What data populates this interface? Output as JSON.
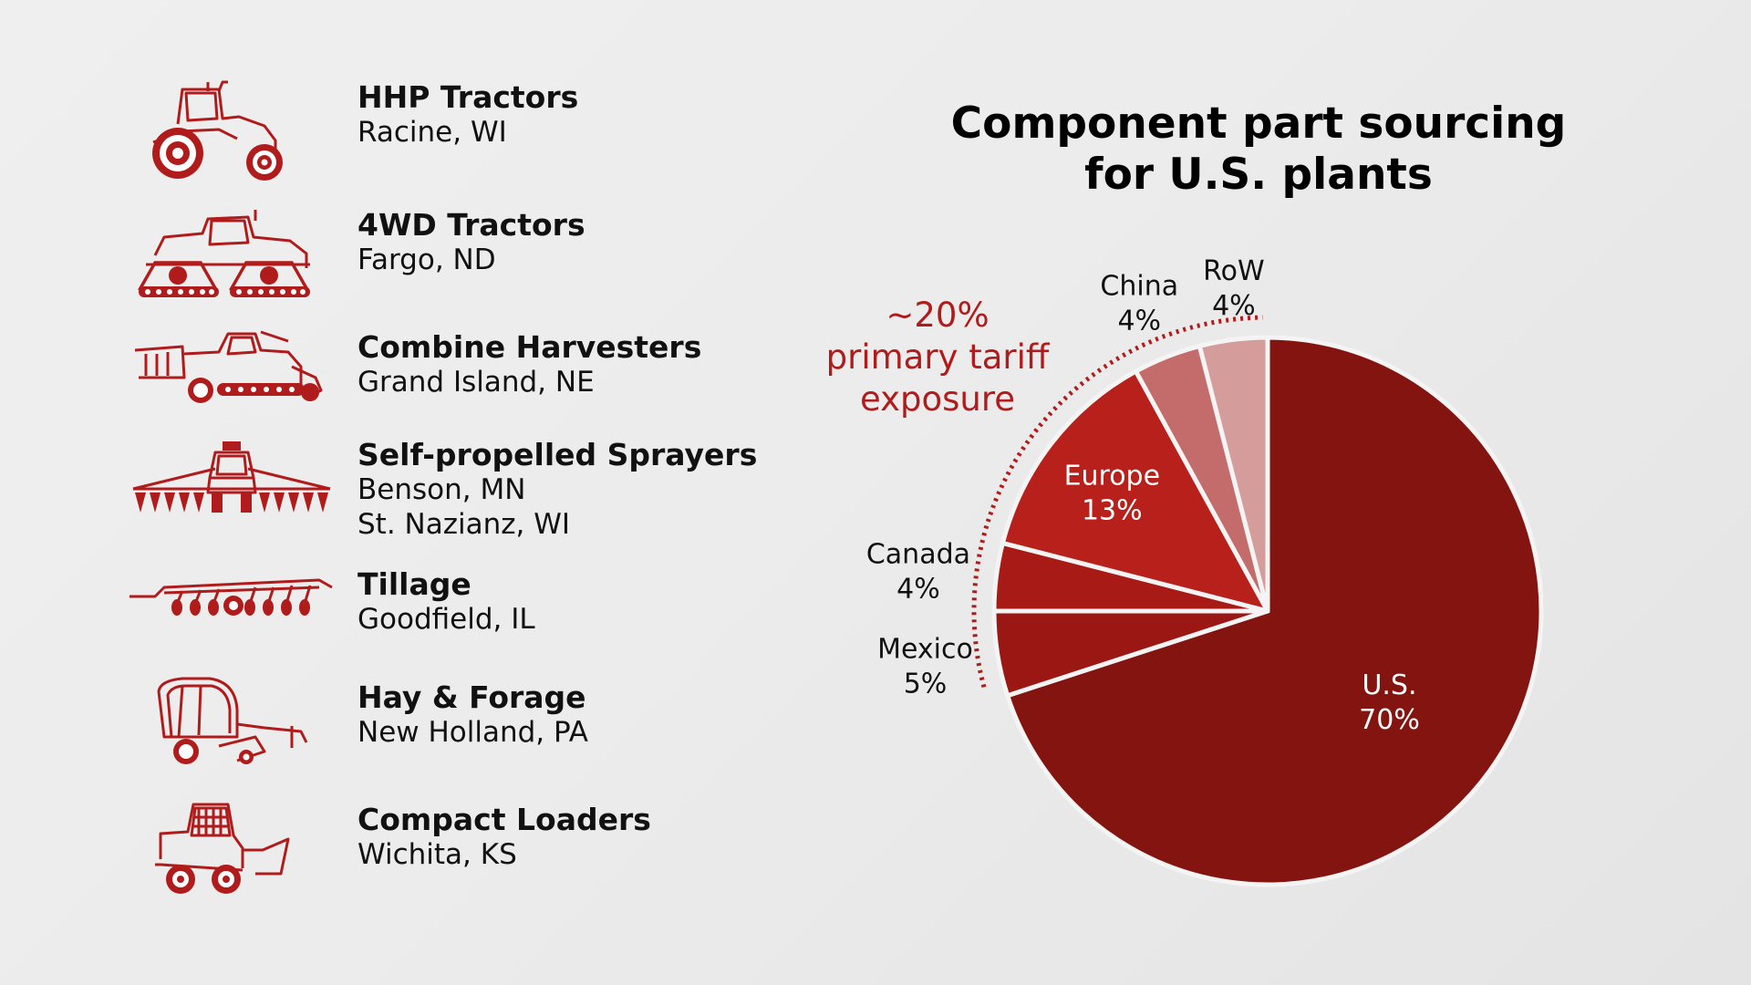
{
  "colors": {
    "accent": "#b01c1c",
    "us": "#831410",
    "mexico": "#9a1714",
    "canada": "#a81a16",
    "europe": "#b8201c",
    "china": "#c46b6b",
    "row": "#d59c9c",
    "tariff_text": "#b01c1c"
  },
  "products": [
    {
      "name": "HHP Tractors",
      "locations": [
        "Racine, WI"
      ],
      "icon": "tractor-icon"
    },
    {
      "name": "4WD Tractors",
      "locations": [
        "Fargo, ND"
      ],
      "icon": "4wd-tractor-icon"
    },
    {
      "name": "Combine Harvesters",
      "locations": [
        "Grand Island, NE"
      ],
      "icon": "combine-harvester-icon"
    },
    {
      "name": "Self-propelled Sprayers",
      "locations": [
        "Benson, MN",
        "St. Nazianz, WI"
      ],
      "icon": "sprayer-icon"
    },
    {
      "name": "Tillage",
      "locations": [
        "Goodfield, IL"
      ],
      "icon": "tillage-icon"
    },
    {
      "name": "Hay & Forage",
      "locations": [
        "New Holland, PA"
      ],
      "icon": "baler-icon"
    },
    {
      "name": "Compact Loaders",
      "locations": [
        "Wichita, KS"
      ],
      "icon": "skid-steer-icon"
    }
  ],
  "chart_data": {
    "type": "pie",
    "title": "Component part sourcing for U.S. plants",
    "title_lines": [
      "Component part sourcing",
      "for U.S. plants"
    ],
    "slices": [
      {
        "label": "U.S.",
        "value": 70,
        "display": "70%"
      },
      {
        "label": "Mexico",
        "value": 5,
        "display": "5%"
      },
      {
        "label": "Canada",
        "value": 4,
        "display": "4%"
      },
      {
        "label": "Europe",
        "value": 13,
        "display": "13%"
      },
      {
        "label": "China",
        "value": 4,
        "display": "4%"
      },
      {
        "label": "RoW",
        "value": 4,
        "display": "4%"
      }
    ],
    "annotation": {
      "lines": [
        "~20%",
        "primary tariff",
        "exposure"
      ],
      "covers": [
        "Mexico",
        "Canada",
        "Europe",
        "China",
        "RoW"
      ]
    },
    "legend": "none",
    "start": "12 o'clock, clockwise"
  }
}
